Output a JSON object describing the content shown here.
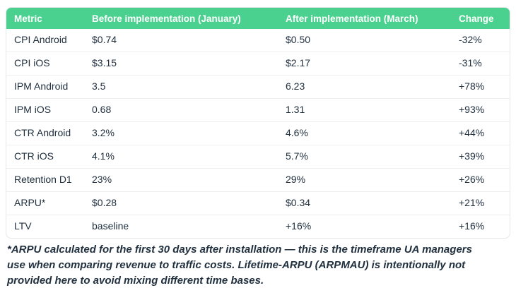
{
  "table": {
    "columns": [
      "Metric",
      "Before implementation (January)",
      "After implementation (March)",
      "Change"
    ],
    "rows": [
      [
        "CPI Android",
        "$0.74",
        "$0.50",
        "-32%"
      ],
      [
        "CPI iOS",
        "$3.15",
        "$2.17",
        "-31%"
      ],
      [
        "IPM Android",
        "3.5",
        "6.23",
        "+78%"
      ],
      [
        "IPM iOS",
        "0.68",
        "1.31",
        "+93%"
      ],
      [
        "CTR Android",
        "3.2%",
        "4.6%",
        "+44%"
      ],
      [
        "CTR iOS",
        "4.1%",
        "5.7%",
        "+39%"
      ],
      [
        "Retention D1",
        "23%",
        "29%",
        "+26%"
      ],
      [
        "ARPU*",
        "$0.28",
        "$0.34",
        "+21%"
      ],
      [
        "LTV",
        "baseline",
        "+16%",
        "+16%"
      ]
    ]
  },
  "footnote": {
    "lines": [
      "*ARPU calculated for the first 30 days after installation — this is the timeframe UA managers",
      "use when comparing revenue to traffic costs. Lifetime-ARPU (ARPMAU) is intentionally not",
      "provided here to avoid mixing different time bases."
    ]
  },
  "colors": {
    "header_background": "#4AD18F",
    "header_text": "#FFFFFF",
    "body_text": "#21303F",
    "row_divider": "#ECEEF1",
    "table_border": "#E5E7EA",
    "page_background": "#FFFFFF"
  }
}
